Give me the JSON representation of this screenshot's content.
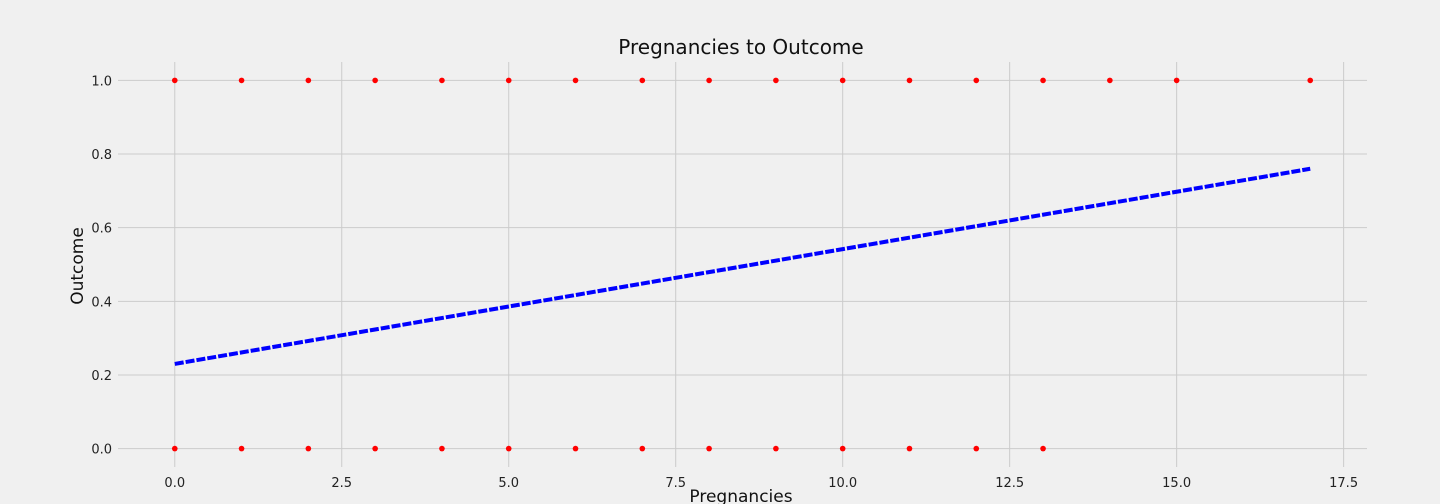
{
  "chart_data": {
    "type": "scatter",
    "title": "Pregnancies to Outcome",
    "xlabel": "Pregnancies",
    "ylabel": "Outcome",
    "xlim": [
      -0.85,
      17.85
    ],
    "ylim": [
      -0.05,
      1.05
    ],
    "xticks": [
      0.0,
      2.5,
      5.0,
      7.5,
      10.0,
      12.5,
      15.0,
      17.5
    ],
    "xtick_labels": [
      "0.0",
      "2.5",
      "5.0",
      "7.5",
      "10.0",
      "12.5",
      "15.0",
      "17.5"
    ],
    "yticks": [
      0.0,
      0.2,
      0.4,
      0.6,
      0.8,
      1.0
    ],
    "ytick_labels": [
      "0.0",
      "0.2",
      "0.4",
      "0.6",
      "0.8",
      "1.0"
    ],
    "grid": true,
    "legend": "none",
    "series": [
      {
        "type": "scatter",
        "color": "#ff0000",
        "points": [
          [
            0,
            1
          ],
          [
            1,
            1
          ],
          [
            2,
            1
          ],
          [
            3,
            1
          ],
          [
            4,
            1
          ],
          [
            5,
            1
          ],
          [
            6,
            1
          ],
          [
            7,
            1
          ],
          [
            8,
            1
          ],
          [
            9,
            1
          ],
          [
            10,
            1
          ],
          [
            11,
            1
          ],
          [
            12,
            1
          ],
          [
            13,
            1
          ],
          [
            14,
            1
          ],
          [
            15,
            1
          ],
          [
            17,
            1
          ],
          [
            0,
            0
          ],
          [
            1,
            0
          ],
          [
            2,
            0
          ],
          [
            3,
            0
          ],
          [
            4,
            0
          ],
          [
            5,
            0
          ],
          [
            6,
            0
          ],
          [
            7,
            0
          ],
          [
            8,
            0
          ],
          [
            9,
            0
          ],
          [
            10,
            0
          ],
          [
            11,
            0
          ],
          [
            12,
            0
          ],
          [
            13,
            0
          ]
        ]
      },
      {
        "type": "line",
        "color": "#0000ff",
        "style": "dashed",
        "x": [
          0,
          17
        ],
        "y": [
          0.23,
          0.76
        ]
      }
    ]
  }
}
